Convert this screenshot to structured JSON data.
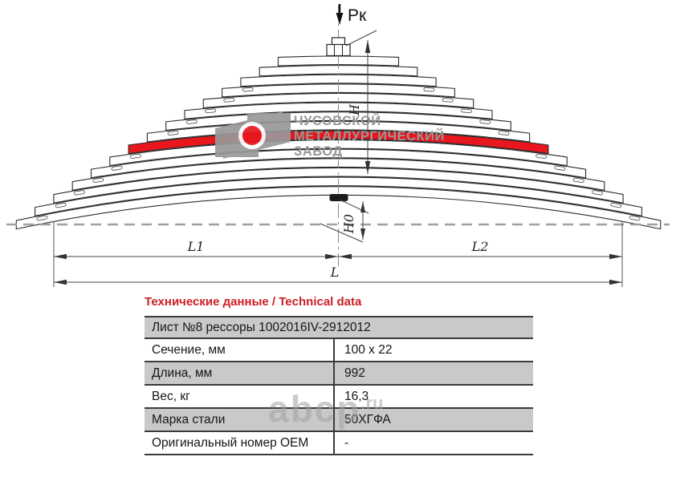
{
  "diagram": {
    "load_label": "Рк",
    "dim_labels": {
      "h": "H",
      "h0": "H0",
      "l1": "L1",
      "l2": "L2",
      "l": "L"
    },
    "leaf_count": 15,
    "highlighted_leaf": 9,
    "highlight_color": "#e8171e",
    "line_color": "#2b2b2b",
    "datum_color": "#a0a0a0"
  },
  "logo": {
    "line1": "ЧУСОВСКОЙ",
    "line2": "МЕТАЛЛУРГИЧЕСКИЙ",
    "line3": "ЗАВОД",
    "gray": "#999999",
    "red": "#e8171e"
  },
  "table": {
    "title": "Технические данные / Technical data",
    "title_color": "#cc2026",
    "row_gray": "#c9c9c9",
    "header": "Лист №8 рессоры 1002016IV-2912012",
    "rows": [
      {
        "label": "Сечение, мм",
        "value": "100 x 22"
      },
      {
        "label": "Длина, мм",
        "value": "992"
      },
      {
        "label": "Вес, кг",
        "value": "16,3"
      },
      {
        "label": "Марка стали",
        "value": "50ХГФА"
      },
      {
        "label": "Оригинальный номер OEM",
        "value": "-"
      }
    ]
  },
  "watermark": {
    "text": "abcp",
    "suffix": ".ru"
  }
}
